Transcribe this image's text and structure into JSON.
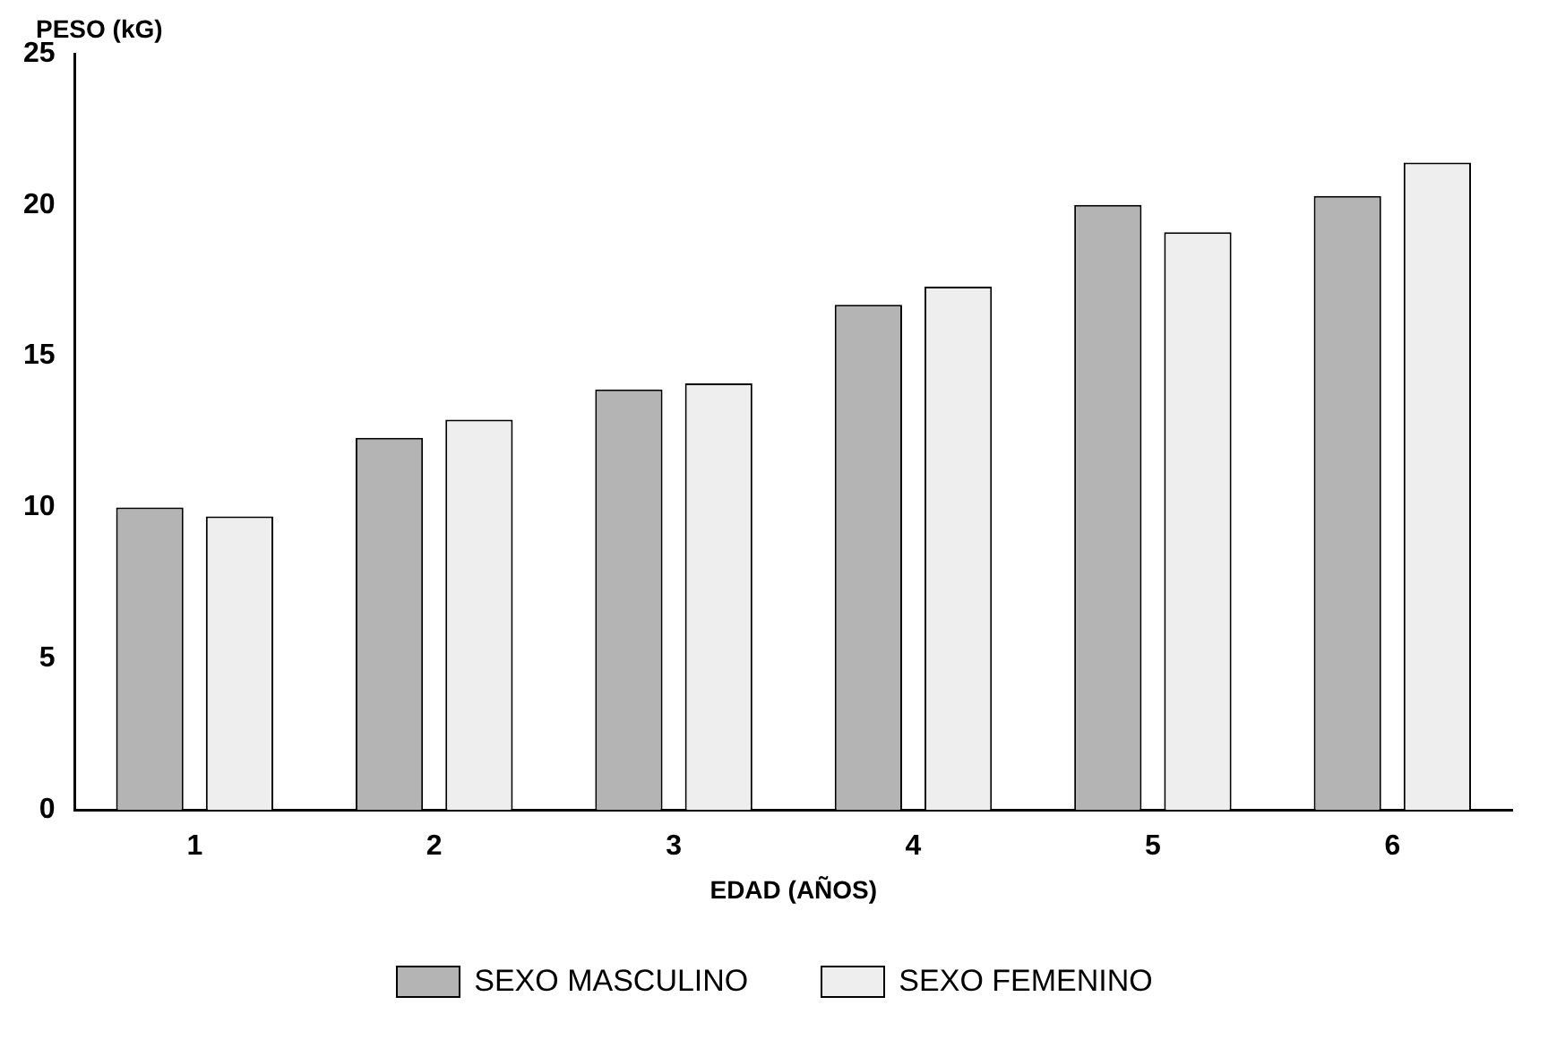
{
  "chart_data": {
    "type": "bar",
    "xlabel": "EDAD (AÑOS)",
    "ylabel": "PESO (kG)",
    "categories": [
      "1",
      "2",
      "3",
      "4",
      "5",
      "6"
    ],
    "series": [
      {
        "name": "SEXO MASCULINO",
        "color": "#b4b4b4",
        "values": [
          10.0,
          12.3,
          13.9,
          16.7,
          20.0,
          20.3
        ]
      },
      {
        "name": "SEXO FEMENINO",
        "color": "#eeeeee",
        "values": [
          9.7,
          12.9,
          14.1,
          17.3,
          19.1,
          21.4
        ]
      }
    ],
    "ylim": [
      0,
      25
    ],
    "yticks": [
      0,
      5,
      10,
      15,
      20,
      25
    ],
    "grid": false,
    "legend": "bottom"
  }
}
